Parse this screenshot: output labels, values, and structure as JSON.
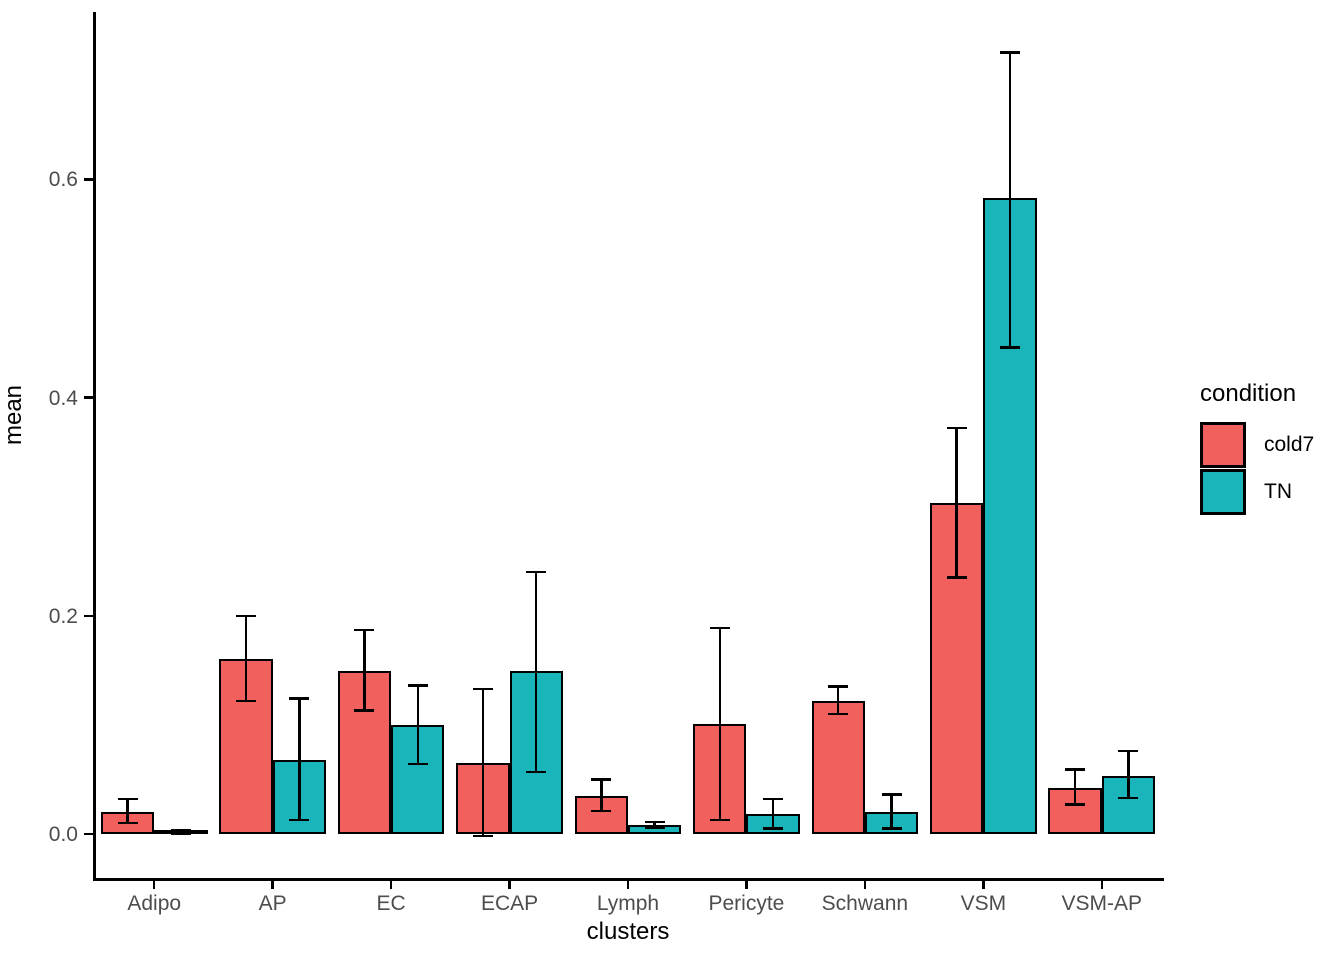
{
  "chart": {
    "x_axis_title": "clusters",
    "y_axis_title": "mean",
    "legend": {
      "title": "condition",
      "items": [
        {
          "label": "cold7",
          "color": "#F2605D"
        },
        {
          "label": "TN",
          "color": "#1AB5BA"
        }
      ]
    }
  },
  "chart_data": {
    "type": "bar",
    "title": "",
    "xlabel": "clusters",
    "ylabel": "mean",
    "grid": false,
    "legend_position": "right",
    "legend_title": "condition",
    "categories": [
      "Adipo",
      "AP",
      "EC",
      "ECAP",
      "Lymph",
      "Pericyte",
      "Schwann",
      "VSM",
      "VSM-AP"
    ],
    "series": [
      {
        "name": "cold7",
        "color": "#F2605D",
        "values": [
          0.02,
          0.16,
          0.149,
          0.065,
          0.035,
          0.101,
          0.122,
          0.303,
          0.042
        ],
        "err_low": [
          0.01,
          0.122,
          0.113,
          -0.002,
          0.021,
          0.013,
          0.11,
          0.235,
          0.027
        ],
        "err_high": [
          0.032,
          0.2,
          0.187,
          0.133,
          0.05,
          0.189,
          0.135,
          0.372,
          0.059
        ]
      },
      {
        "name": "TN",
        "color": "#1AB5BA",
        "values": [
          0.001,
          0.068,
          0.1,
          0.149,
          0.008,
          0.018,
          0.02,
          0.583,
          0.053
        ],
        "err_low": [
          0.0,
          0.013,
          0.064,
          0.057,
          0.006,
          0.005,
          0.005,
          0.446,
          0.033
        ],
        "err_high": [
          0.003,
          0.124,
          0.136,
          0.24,
          0.011,
          0.032,
          0.036,
          0.716,
          0.076
        ]
      }
    ],
    "y_ticks": [
      {
        "value": 0.0,
        "label": "0.0"
      },
      {
        "value": 0.2,
        "label": "0.2"
      },
      {
        "value": 0.4,
        "label": "0.4"
      },
      {
        "value": 0.6,
        "label": "0.6"
      }
    ],
    "ylim": [
      -0.0403,
      0.7533
    ]
  }
}
